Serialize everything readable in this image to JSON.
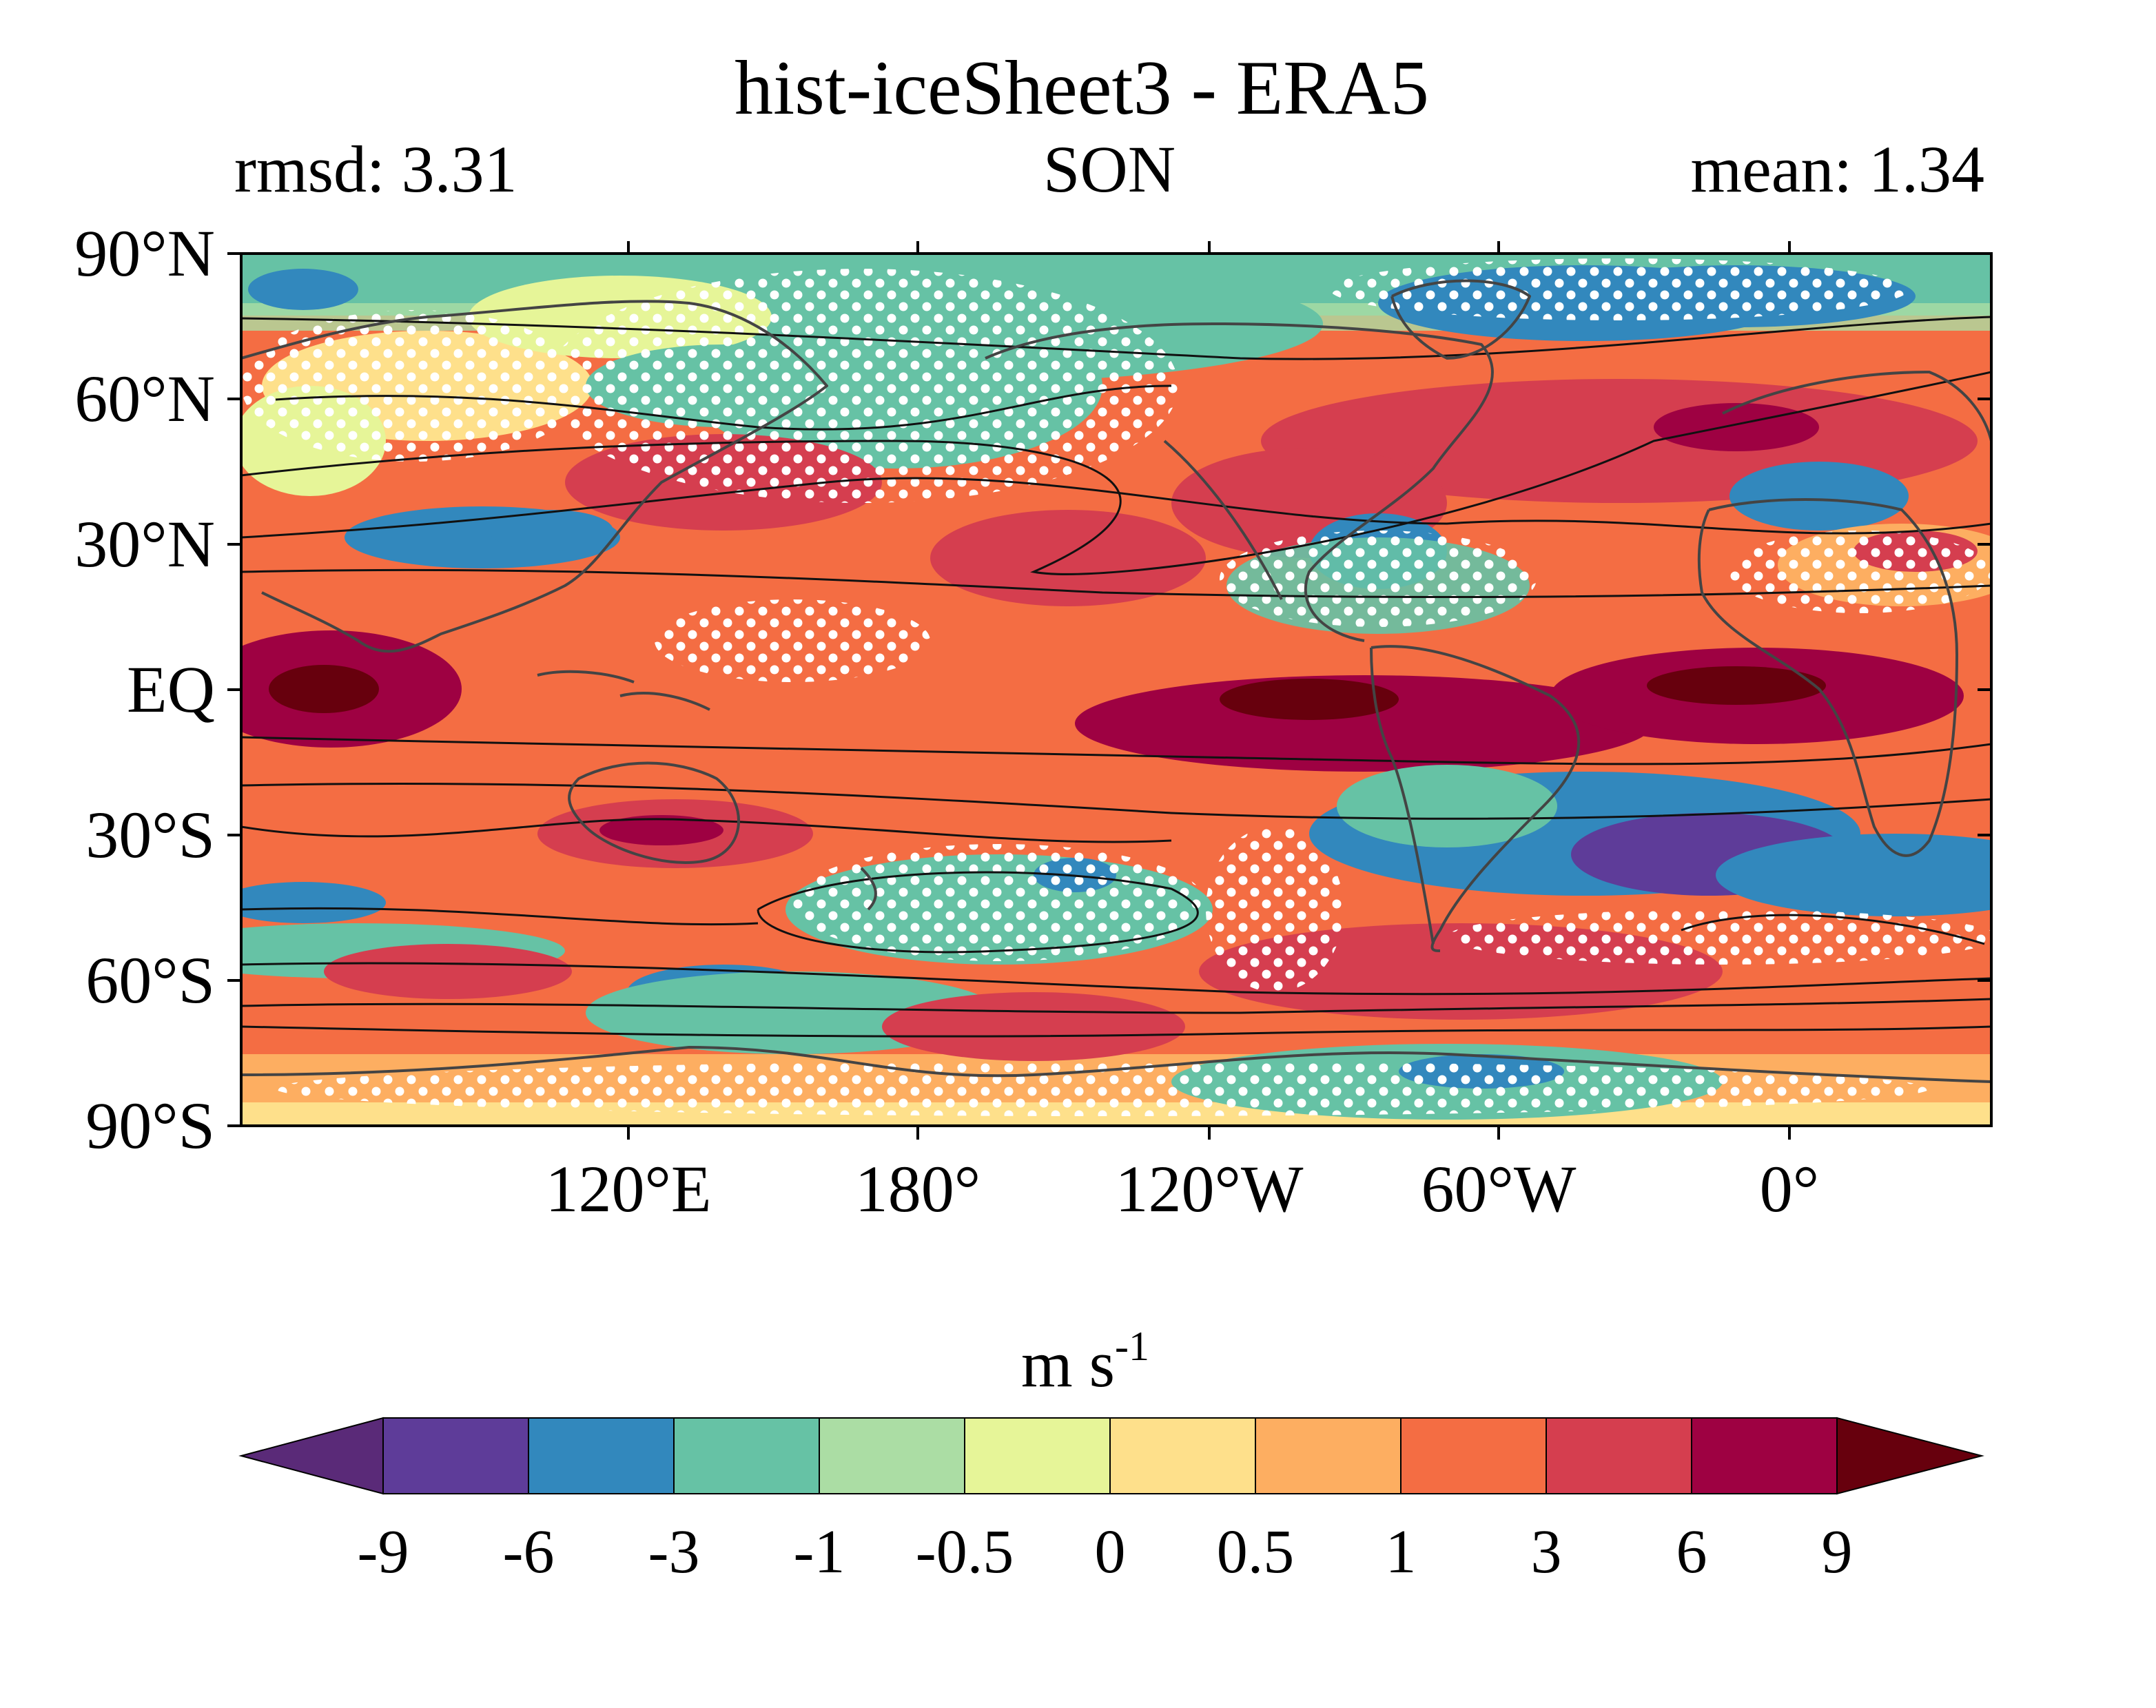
{
  "title": "hist-iceSheet3 - ERA5",
  "left_label": "rmsd: 3.31",
  "center_label": "SON",
  "right_label": "mean: 1.34",
  "map": {
    "lat_ticks": [
      "90°N",
      "60°N",
      "30°N",
      "EQ",
      "30°S",
      "60°S",
      "90°S"
    ],
    "lon_ticks": [
      "120°E",
      "180°",
      "120°W",
      "60°W",
      "0°"
    ],
    "lon_range": "40°E to 40°E (centered near 140°W)",
    "stippling": "white dots mark non-significant differences",
    "contours": "black climatology contour lines"
  },
  "colorbar": {
    "unit_base": "m s",
    "unit_exponent": "-1",
    "levels": [
      "-9",
      "-6",
      "-3",
      "-1",
      "-0.5",
      "0",
      "0.5",
      "1",
      "3",
      "6",
      "9"
    ],
    "colors": [
      "#5e3c99",
      "#3288bd",
      "#66c2a5",
      "#abdda4",
      "#e6f598",
      "#fee08b",
      "#fdae61",
      "#f46d43",
      "#d53e4f",
      "#9e0142"
    ],
    "extend_low_color": "#5a2a78",
    "extend_high_color": "#67000d"
  }
}
